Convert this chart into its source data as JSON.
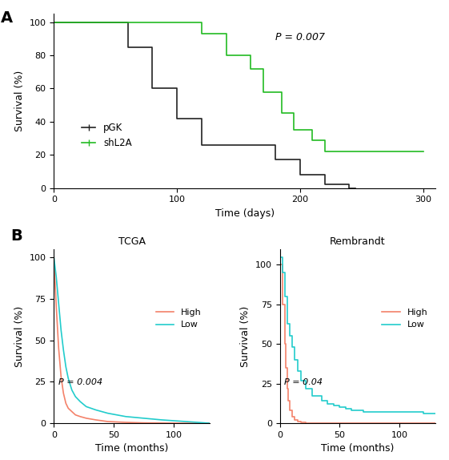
{
  "panel_A": {
    "pGK": {
      "times": [
        0,
        60,
        60,
        80,
        80,
        100,
        100,
        120,
        120,
        140,
        140,
        160,
        160,
        180,
        180,
        200,
        200,
        220,
        220,
        240,
        240,
        245,
        245
      ],
      "surv": [
        100,
        100,
        85,
        85,
        60,
        60,
        42,
        42,
        26,
        26,
        26,
        26,
        26,
        26,
        17,
        17,
        8,
        8,
        2,
        2,
        0,
        0,
        0
      ],
      "color": "#222222",
      "label": "pGK"
    },
    "shL2A": {
      "times": [
        0,
        120,
        120,
        140,
        140,
        160,
        160,
        170,
        170,
        185,
        185,
        195,
        195,
        210,
        210,
        220,
        220,
        240,
        240,
        245,
        245,
        300,
        300
      ],
      "surv": [
        100,
        100,
        93,
        93,
        80,
        80,
        72,
        72,
        58,
        58,
        45,
        45,
        35,
        35,
        29,
        29,
        22,
        22,
        22,
        22,
        22,
        22,
        22
      ],
      "color": "#22bb22",
      "label": "shL2A"
    },
    "p_text": "P = 0.007",
    "xlabel": "Time (days)",
    "ylabel": "Survival (%)",
    "xlim": [
      0,
      310
    ],
    "ylim": [
      0,
      105
    ],
    "xticks": [
      0,
      100,
      200,
      300
    ],
    "yticks": [
      0,
      20,
      40,
      60,
      80,
      100
    ]
  },
  "panel_B_TCGA": {
    "high": {
      "times": [
        0,
        2,
        4,
        6,
        8,
        10,
        12,
        15,
        18,
        22,
        27,
        35,
        45,
        60,
        75,
        90,
        110,
        130
      ],
      "surv": [
        100,
        70,
        45,
        28,
        18,
        12,
        9,
        7,
        5,
        4,
        3,
        2,
        1,
        0.5,
        0.2,
        0.1,
        0,
        0
      ],
      "color": "#f4826a",
      "label": "High"
    },
    "low": {
      "times": [
        0,
        2,
        4,
        6,
        8,
        10,
        12,
        15,
        18,
        22,
        27,
        35,
        45,
        60,
        75,
        90,
        110,
        130
      ],
      "surv": [
        100,
        88,
        72,
        56,
        44,
        34,
        27,
        20,
        16,
        13,
        10,
        8,
        6,
        4,
        3,
        2,
        1,
        0
      ],
      "color": "#22cccc",
      "label": "Low"
    },
    "p_text": "P = 0.004",
    "title": "TCGA",
    "xlabel": "Time (months)",
    "ylabel": "Survival (%)",
    "xlim": [
      0,
      130
    ],
    "ylim": [
      0,
      105
    ],
    "xticks": [
      0,
      50,
      100
    ],
    "yticks": [
      0,
      25,
      50,
      75,
      100
    ]
  },
  "panel_B_Rembrandt": {
    "high": {
      "times": [
        0,
        2,
        4,
        5,
        6,
        7,
        8,
        10,
        12,
        15,
        18,
        22,
        27,
        35,
        45,
        60,
        80,
        100,
        120,
        130
      ],
      "surv": [
        100,
        75,
        50,
        35,
        22,
        14,
        8,
        4,
        2,
        1,
        0.5,
        0.2,
        0,
        0,
        0,
        0,
        0,
        0,
        0,
        0
      ],
      "color": "#f4826a",
      "label": "High"
    },
    "low": {
      "times": [
        0,
        2,
        4,
        6,
        8,
        10,
        12,
        15,
        18,
        22,
        27,
        35,
        40,
        45,
        50,
        55,
        60,
        70,
        80,
        90,
        100,
        120,
        130
      ],
      "surv": [
        105,
        95,
        80,
        63,
        55,
        48,
        40,
        33,
        27,
        22,
        17,
        14,
        12,
        11,
        10,
        9,
        8,
        7,
        7,
        7,
        7,
        6,
        6
      ],
      "color": "#22cccc",
      "label": "Low"
    },
    "p_text": "P = 0.04",
    "title": "Rembrandt",
    "xlabel": "Time (months)",
    "ylabel": "Survival (%)",
    "xlim": [
      0,
      130
    ],
    "ylim": [
      0,
      110
    ],
    "xticks": [
      0,
      50,
      100
    ],
    "yticks": [
      0,
      25,
      50,
      75,
      100
    ]
  }
}
